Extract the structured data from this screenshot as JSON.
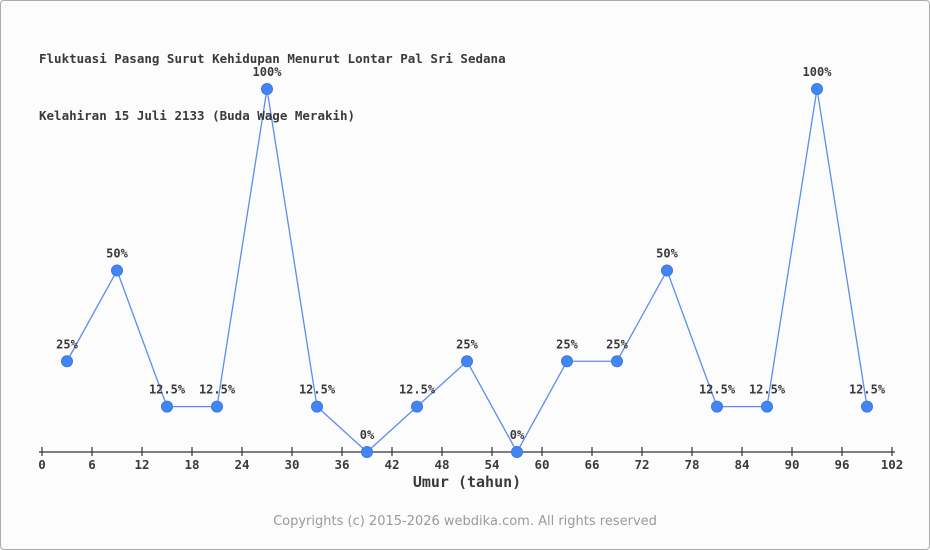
{
  "title": {
    "line1": "Fluktuasi Pasang Surut Kehidupan Menurut Lontar Pal Sri Sedana",
    "line2": "Kelahiran 15 Juli 2133 (Buda Wage Merakih)"
  },
  "footer": "Copyrights (c) 2015-2026 webdika.com. All rights reserved",
  "colors": {
    "marker": "#4285f4",
    "marker_edge": "#3b78e7",
    "line": "#5b8def",
    "axis": "#333333",
    "text": "#3a3a3a",
    "muted": "#9a9a9a",
    "background": "#fcfcfc",
    "border": "#ababab"
  },
  "chart_data": {
    "type": "line",
    "title": "Fluktuasi Pasang Surut Kehidupan Menurut Lontar Pal Sri Sedana Kelahiran 15 Juli 2133 (Buda Wage Merakih)",
    "xlabel": "Umur (tahun)",
    "ylabel": "",
    "x": [
      3,
      9,
      15,
      21,
      27,
      33,
      39,
      45,
      51,
      57,
      63,
      69,
      75,
      81,
      87,
      93,
      99
    ],
    "values": [
      25,
      50,
      12.5,
      12.5,
      100,
      12.5,
      0,
      12.5,
      25,
      0,
      25,
      25,
      50,
      12.5,
      12.5,
      100,
      12.5
    ],
    "point_labels": [
      "25%",
      "50%",
      "12.5%",
      "12.5%",
      "100%",
      "12.5%",
      "0%",
      "12.5%",
      "25%",
      "0%",
      "25%",
      "25%",
      "50%",
      "12.5%",
      "12.5%",
      "100%",
      "12.5%"
    ],
    "x_ticks": [
      0,
      6,
      12,
      18,
      24,
      30,
      36,
      42,
      48,
      54,
      60,
      66,
      72,
      78,
      84,
      90,
      96,
      102
    ],
    "xlim": [
      0,
      102
    ],
    "ylim": [
      0,
      110
    ],
    "grid": false,
    "legend": "none",
    "marker": "circle"
  }
}
